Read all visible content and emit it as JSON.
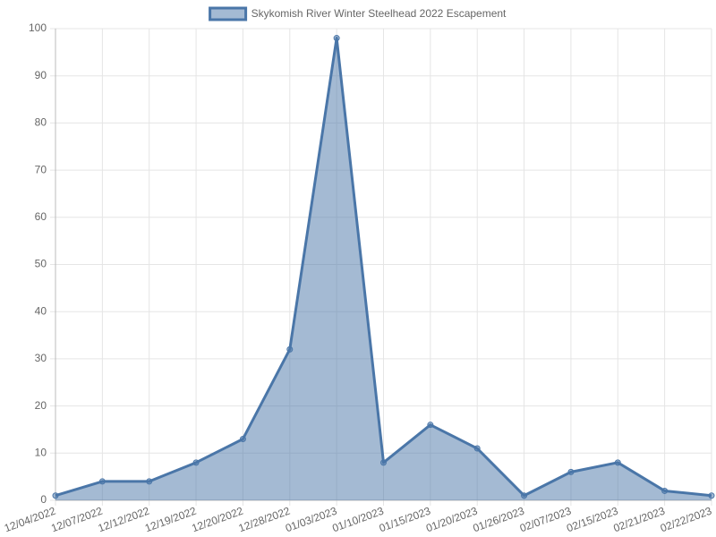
{
  "chart_data": {
    "type": "line",
    "categories": [
      "12/04/2022",
      "12/07/2022",
      "12/12/2022",
      "12/19/2022",
      "12/20/2022",
      "12/28/2022",
      "01/03/2023",
      "01/10/2023",
      "01/15/2023",
      "01/20/2023",
      "01/26/2023",
      "02/07/2023",
      "02/15/2023",
      "02/21/2023",
      "02/22/2023"
    ],
    "series": [
      {
        "name": "Skykomish River Winter Steelhead 2022 Escapement",
        "color": "#4a76a8",
        "fill_color": "rgba(74,118,168,0.5)",
        "values": [
          1,
          4,
          4,
          8,
          13,
          32,
          98,
          8,
          16,
          11,
          1,
          6,
          8,
          2,
          1
        ]
      }
    ],
    "fill": true,
    "ylim": [
      0,
      100
    ],
    "yticks": [
      0,
      10,
      20,
      30,
      40,
      50,
      60,
      70,
      80,
      90,
      100
    ],
    "grid": true,
    "legend": "top"
  }
}
